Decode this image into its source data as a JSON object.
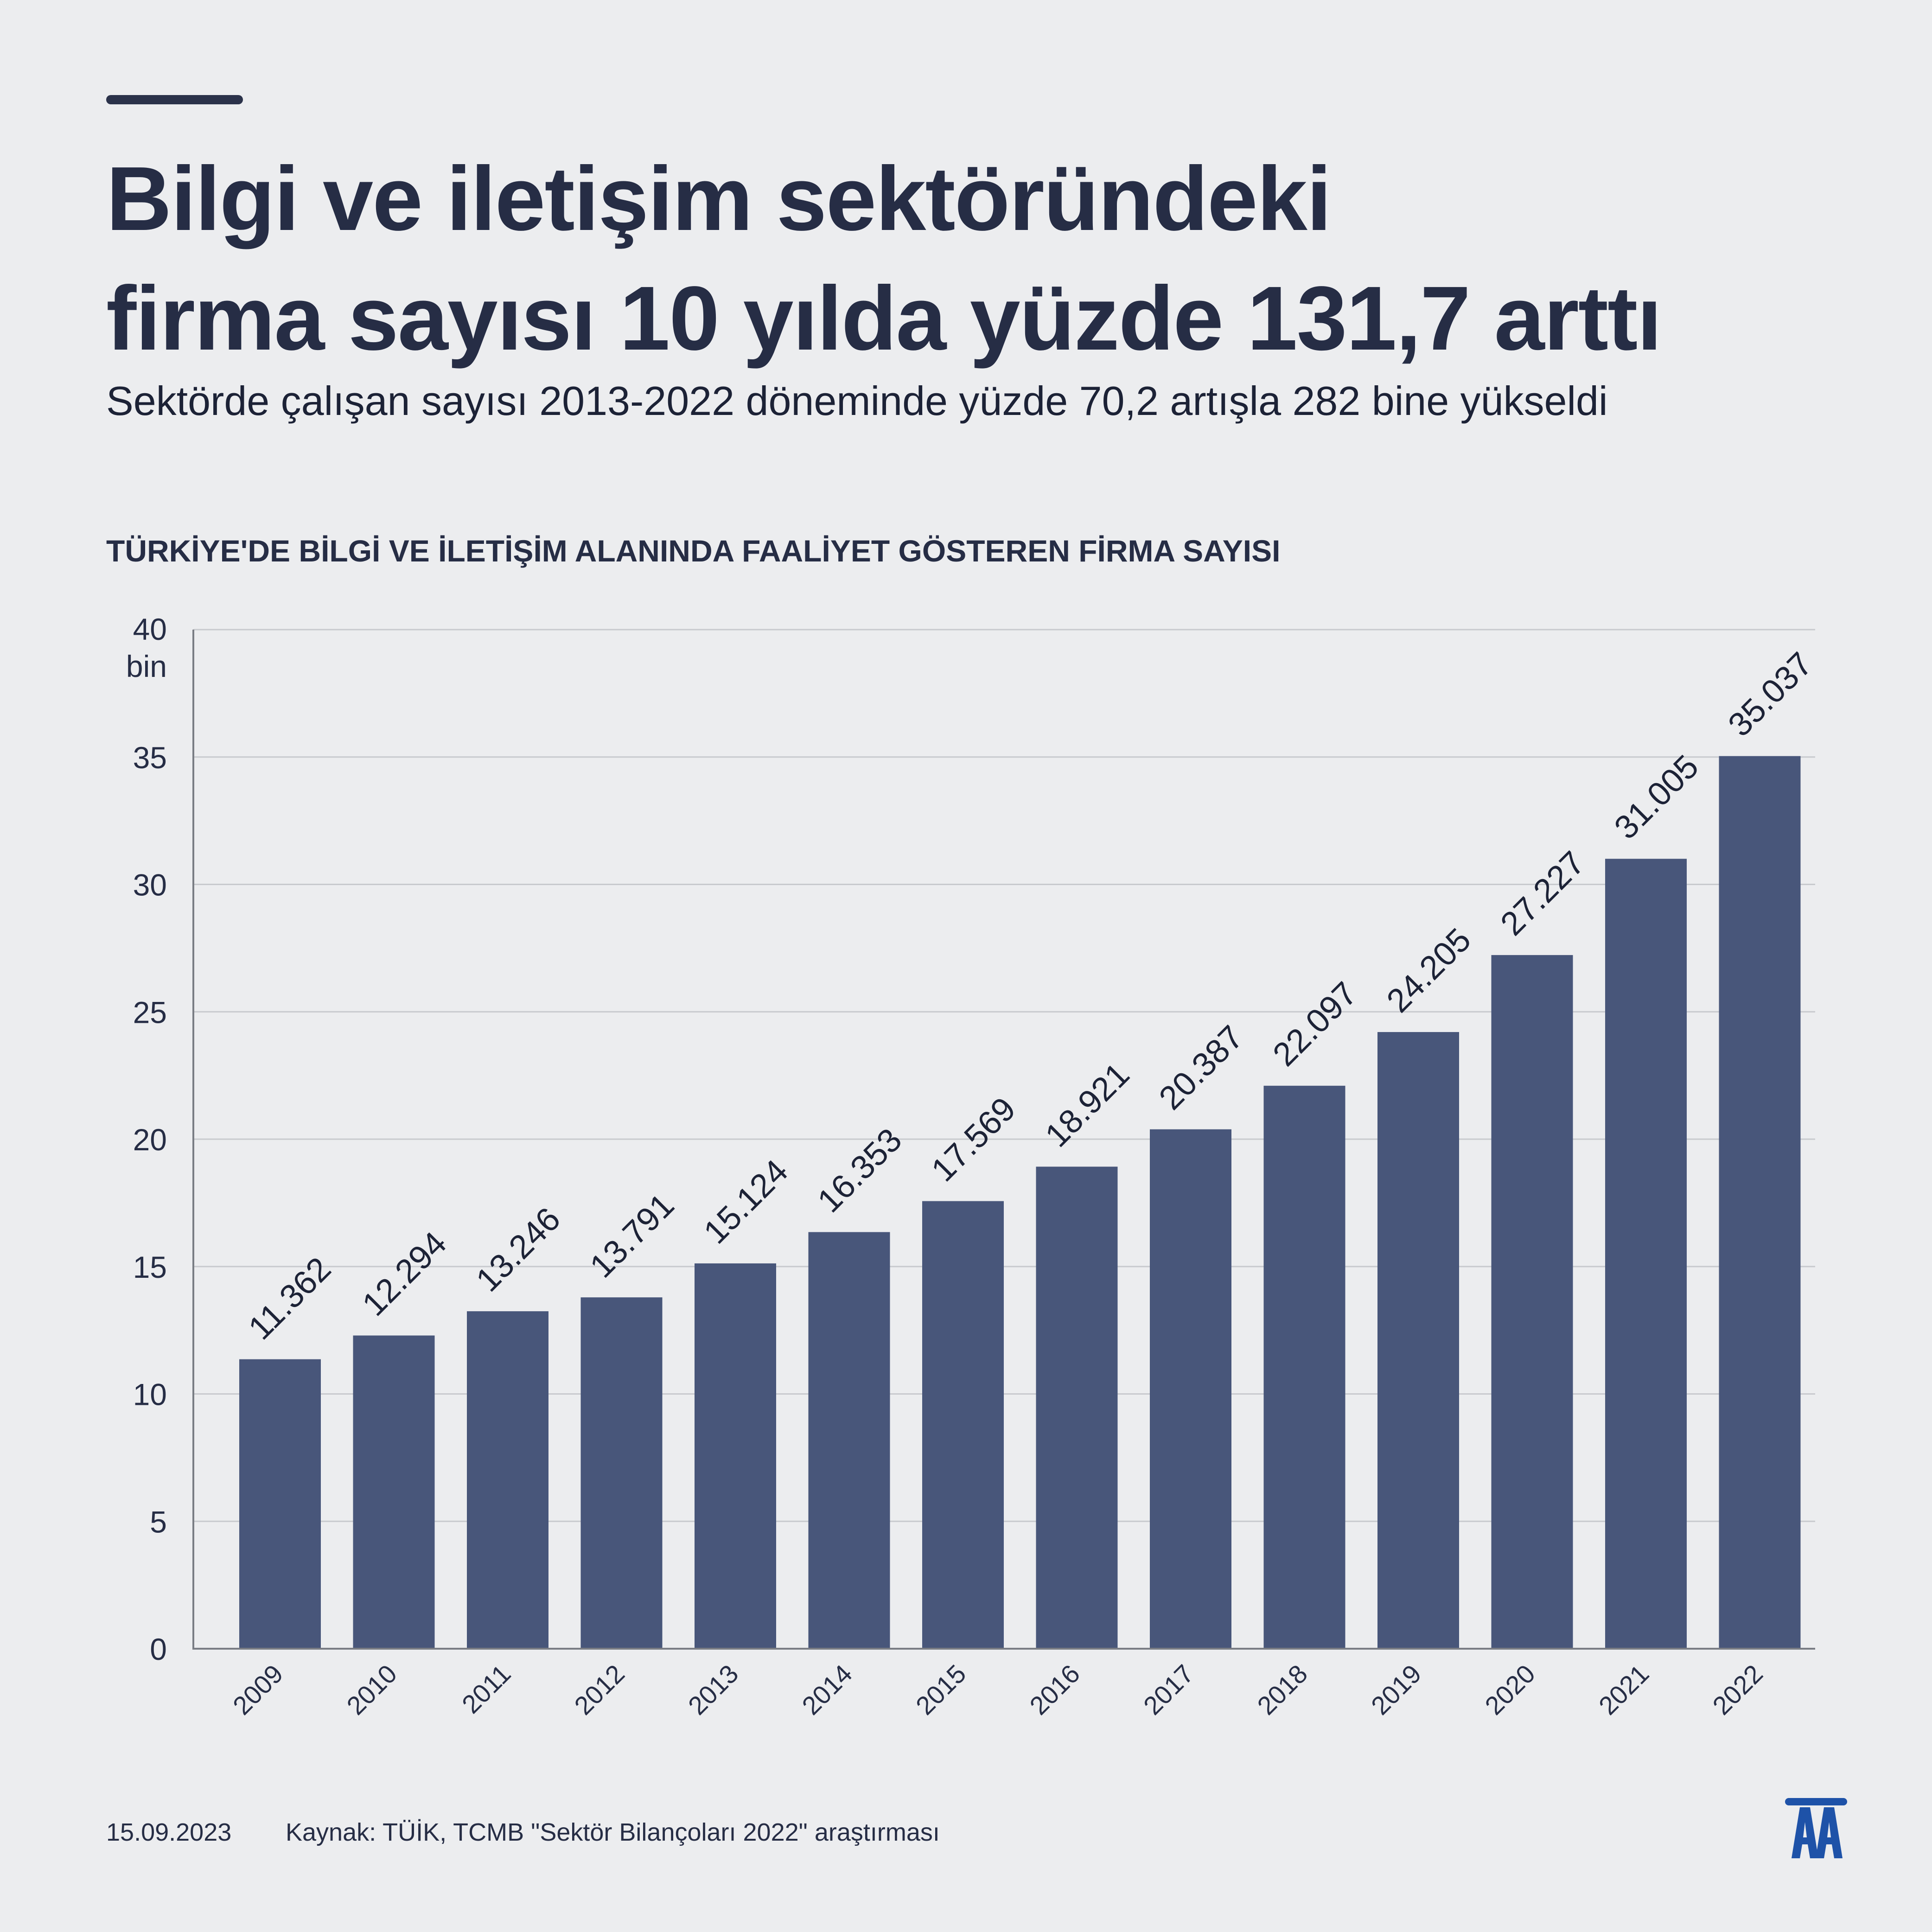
{
  "header": {
    "title_line1": "Bilgi ve iletişim sektöründeki",
    "title_line2": "firma sayısı 10 yılda yüzde 131,7 arttı",
    "subtitle": "Sektörde çalışan sayısı 2013-2022 döneminde yüzde 70,2 artışla 282 bine yükseldi"
  },
  "chart_heading": "TÜRKİYE'DE BİLGİ VE İLETİŞİM ALANINDA FAALİYET GÖSTEREN FİRMA SAYISI",
  "chart_data": {
    "type": "bar",
    "title": "TÜRKİYE'DE BİLGİ VE İLETİŞİM ALANINDA FAALİYET GÖSTEREN FİRMA SAYISI",
    "categories": [
      "2009",
      "2010",
      "2011",
      "2012",
      "2013",
      "2014",
      "2015",
      "2016",
      "2017",
      "2018",
      "2019",
      "2020",
      "2021",
      "2022"
    ],
    "values": [
      11362,
      12294,
      13246,
      13791,
      15124,
      16353,
      17569,
      18921,
      20387,
      22097,
      24205,
      27227,
      31005,
      35037
    ],
    "data_labels": [
      "11.362",
      "12.294",
      "13.246",
      "13.791",
      "15.124",
      "16.353",
      "17.569",
      "18.921",
      "20.387",
      "22.097",
      "24.205",
      "27.227",
      "31.005",
      "35.037"
    ],
    "ylim": [
      0,
      40000
    ],
    "y_ticks": [
      0,
      5000,
      10000,
      15000,
      20000,
      25000,
      30000,
      35000,
      40000
    ],
    "y_tick_labels": [
      "0",
      "5",
      "10",
      "15",
      "20",
      "25",
      "30",
      "35",
      "40"
    ],
    "y_unit": "bin",
    "grid": true,
    "bar_color": "#48567a"
  },
  "footer": {
    "date": "15.09.2023",
    "source": "Kaynak: TÜİK, TCMB \"Sektör Bilançoları 2022\" araştırması"
  },
  "logo": {
    "name": "aa-logo",
    "color": "#1e52a8"
  }
}
